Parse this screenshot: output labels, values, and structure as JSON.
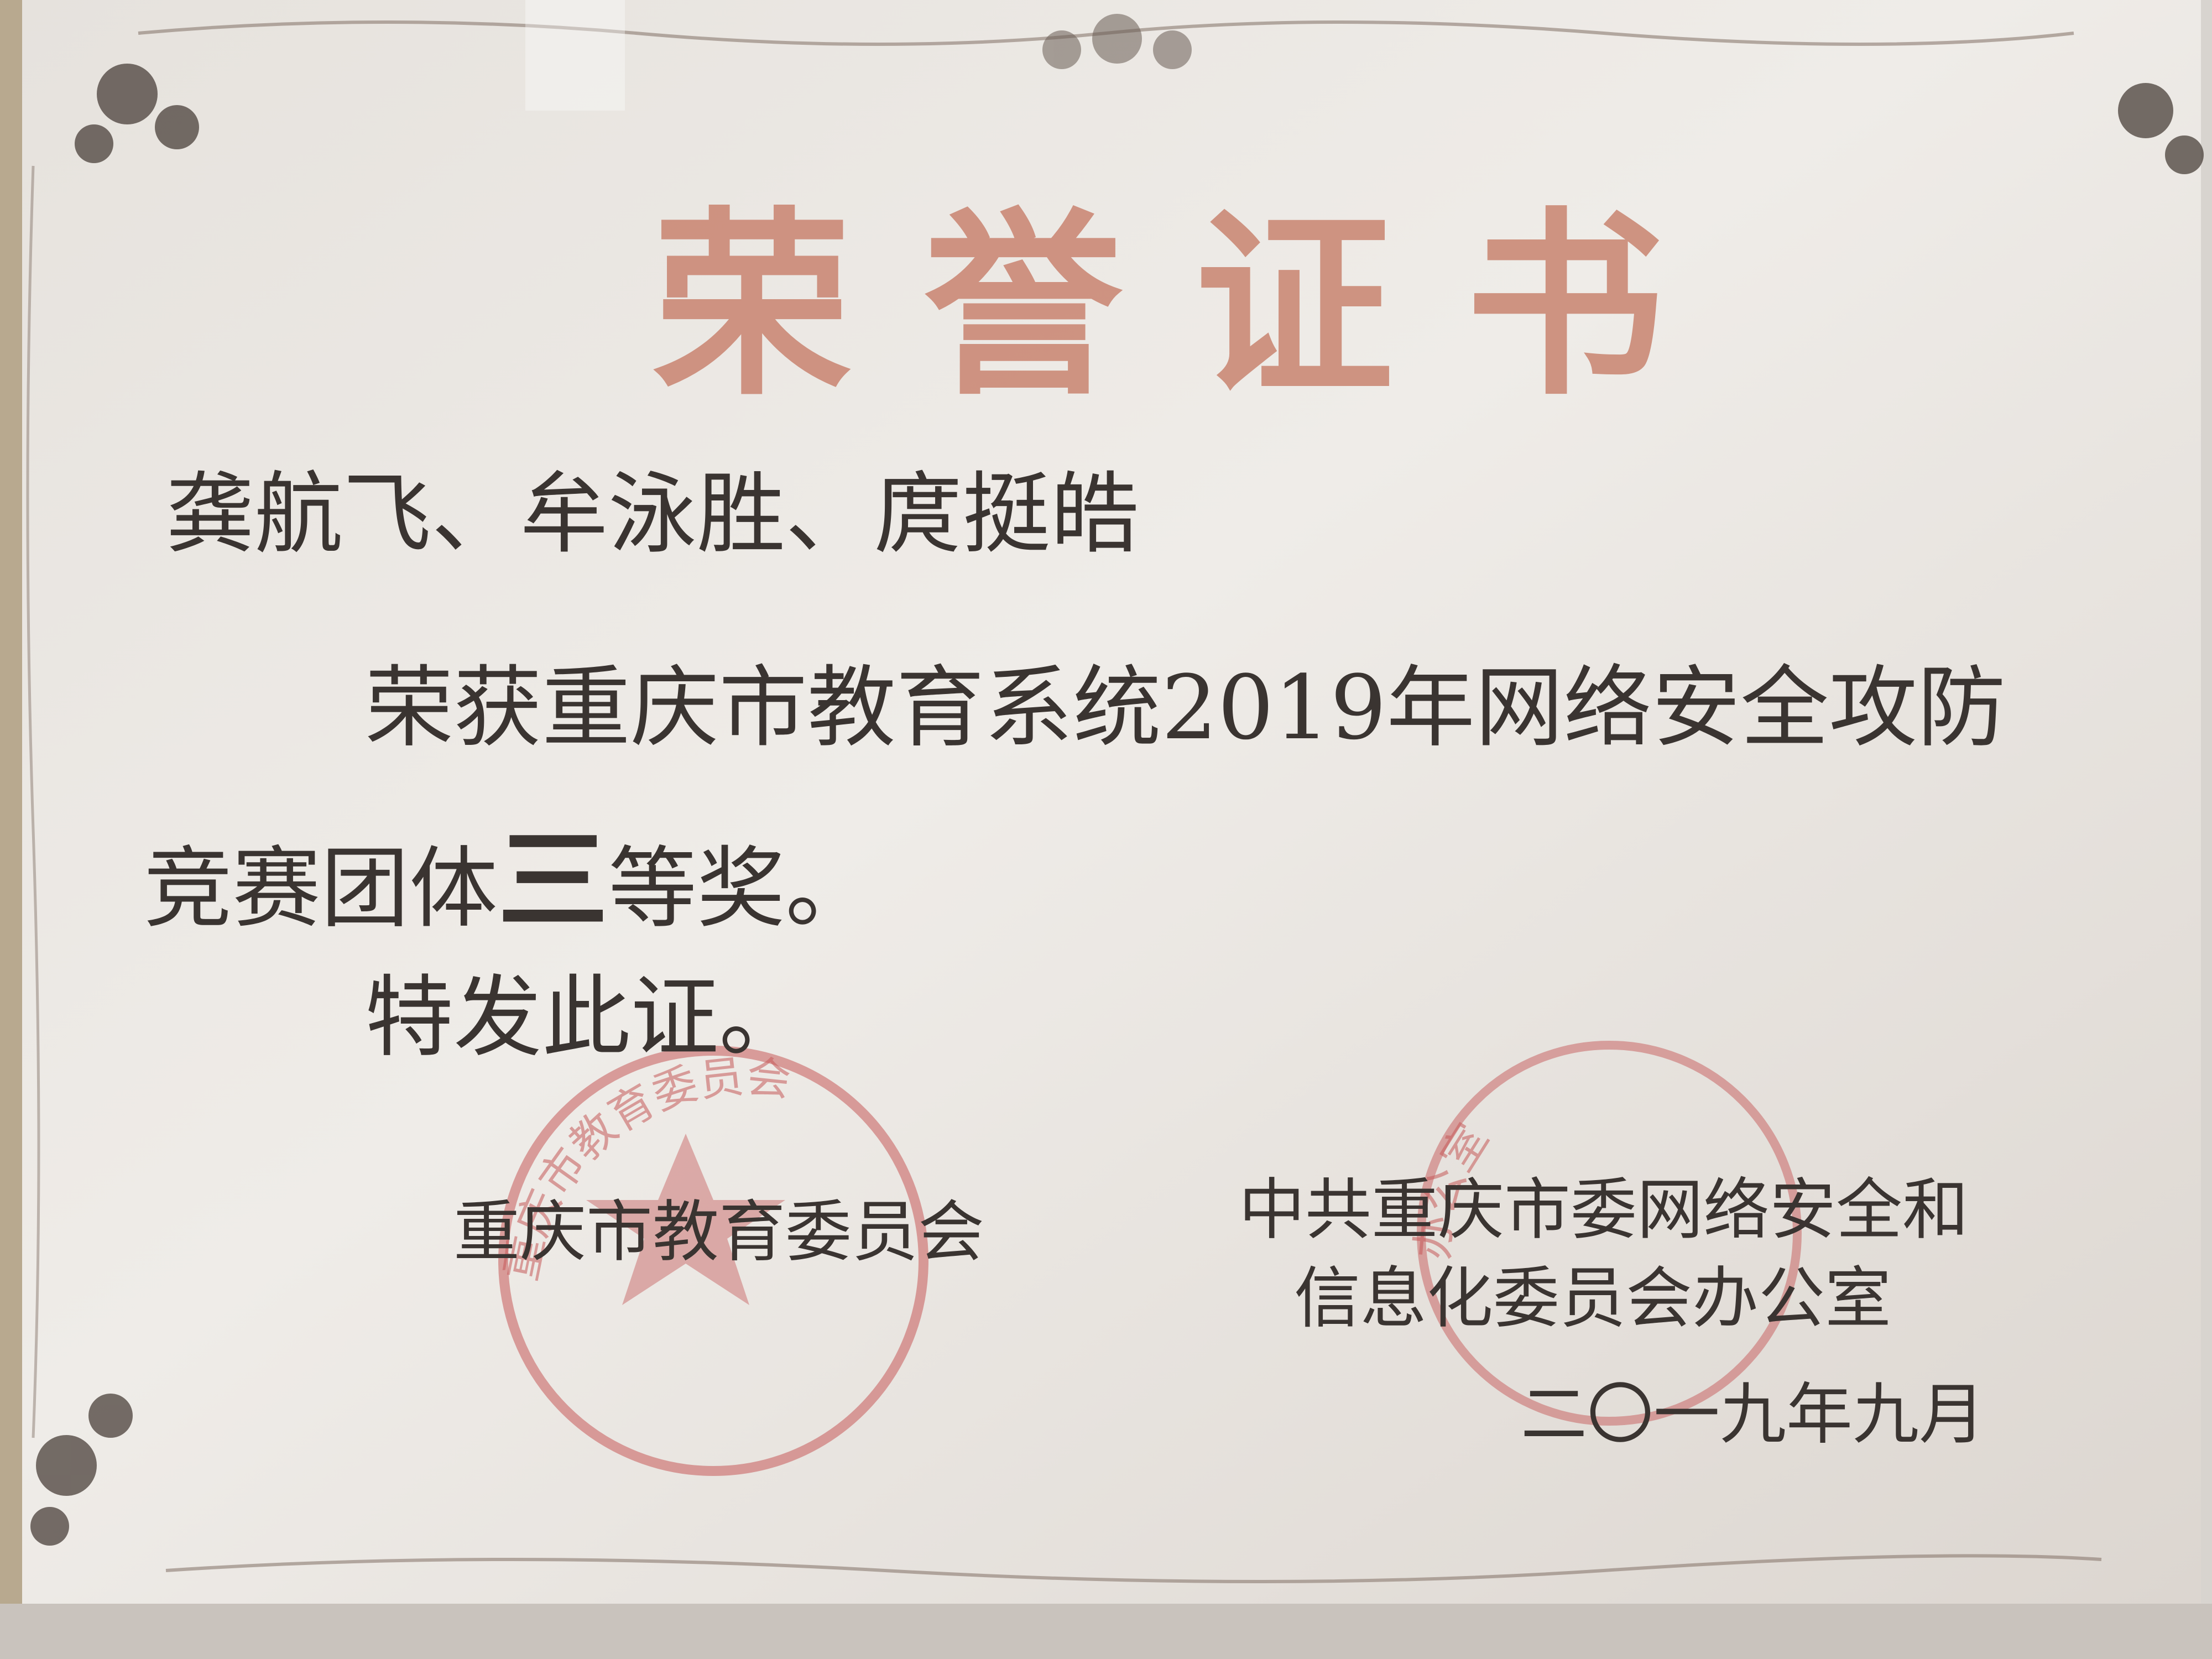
{
  "certificate": {
    "title": "荣誉证书",
    "recipients": "龚航飞、牟泳胜、庹挺皓",
    "body_line1": "荣获重庆市教育系统2019年网络安全攻防",
    "body_line2_prefix": "竞赛团体",
    "award_grade": "三",
    "body_line2_suffix": "等奖。",
    "closing": "特发此证。"
  },
  "issuers": {
    "left": "重庆市教育委员会",
    "right_line1": "中共重庆市委网络安全和",
    "right_line2": "信息化委员会办公室",
    "date": "二〇一九年九月"
  },
  "seals": {
    "left_text": "重庆市教育委员会",
    "right_text": "办公室"
  },
  "colors": {
    "paper": "#ece9e4",
    "frame": "#d8d4cf",
    "title": "#c98470",
    "text": "#3a3431",
    "seal": "#c65a5a"
  }
}
